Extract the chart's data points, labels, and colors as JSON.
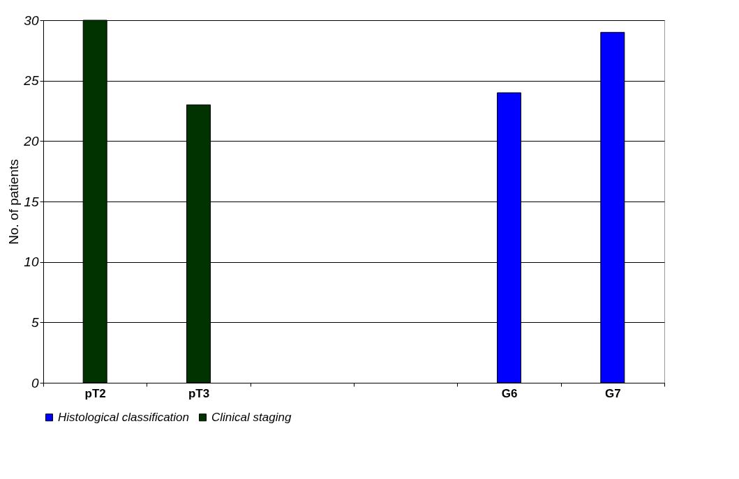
{
  "chart_data": {
    "type": "bar",
    "categories": [
      "pT2",
      "pT3",
      null,
      null,
      "G6",
      "G7"
    ],
    "series": [
      {
        "name": "Histological classification",
        "color": "#0000ff",
        "values": [
          null,
          null,
          null,
          null,
          24,
          29
        ]
      },
      {
        "name": "Clinical staging",
        "color": "#003300",
        "values": [
          30,
          23,
          null,
          null,
          null,
          null
        ]
      }
    ],
    "ylabel": "No. of patients",
    "ylim": [
      0,
      30
    ],
    "yticks": [
      0,
      5,
      10,
      15,
      20,
      25,
      30
    ],
    "grid": "y",
    "legend": "bottom"
  }
}
